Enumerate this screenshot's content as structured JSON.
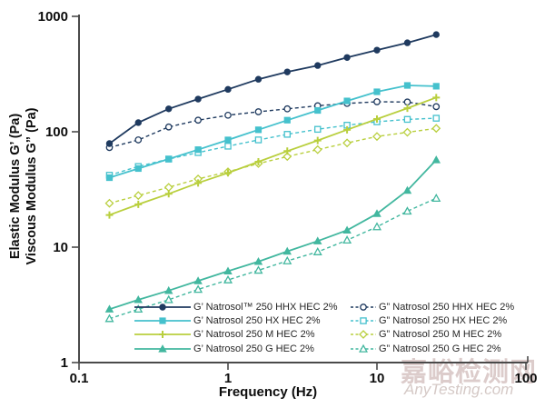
{
  "watermark": {
    "cjk": "嘉峪检测网",
    "latin": "AnyTesting.com"
  },
  "chart_data": {
    "type": "line",
    "scale": "log-log",
    "title": "",
    "xlabel": "Frequency (Hz)",
    "y_label_line1": "Elastic Modulus G’ (Pa)",
    "y_label_line2": "Viscous Modulus G” (Pa)",
    "xlim": [
      0.1,
      100
    ],
    "ylim": [
      1,
      1000
    ],
    "x_tick_values": [
      0.1,
      1,
      10,
      100
    ],
    "x_tick_labels": [
      "0.1",
      "1",
      "10",
      "100"
    ],
    "y_tick_values": [
      1,
      10,
      100,
      1000
    ],
    "y_tick_labels": [
      "1",
      "10",
      "100",
      "1000"
    ],
    "grid": "off",
    "legend_position": "bottom, two columns (G’ solid left, G” dashed right)",
    "x": [
      0.16,
      0.25,
      0.4,
      0.63,
      1,
      1.6,
      2.5,
      4,
      6.3,
      10,
      16,
      25
    ],
    "series": [
      {
        "id": "gp-hhx",
        "label": "G’ Natrosol™ 250 HHX HEC 2%",
        "color": "#1f3a5f",
        "dashed": false,
        "marker": "circle",
        "values": [
          79,
          120,
          158,
          192,
          233,
          285,
          330,
          375,
          440,
          510,
          590,
          695
        ]
      },
      {
        "id": "gp-hx",
        "label": "G’ Natrosol 250 HX HEC 2%",
        "color": "#45c1cd",
        "dashed": false,
        "marker": "square",
        "values": [
          40,
          48,
          58,
          70,
          85,
          104,
          126,
          153,
          185,
          222,
          252,
          248
        ]
      },
      {
        "id": "gp-m",
        "label": "G’ Natrosol 250 M HEC 2%",
        "color": "#b9cf3e",
        "dashed": false,
        "marker": "plus",
        "values": [
          19,
          23.5,
          29,
          36,
          44,
          55,
          68,
          84,
          104,
          129,
          160,
          198
        ]
      },
      {
        "id": "gp-g",
        "label": "G’ Natrosol 250 G HEC 2%",
        "color": "#42b79f",
        "dashed": false,
        "marker": "triangle",
        "values": [
          2.9,
          3.5,
          4.2,
          5.1,
          6.2,
          7.5,
          9.2,
          11.3,
          14,
          19.5,
          31,
          57
        ]
      },
      {
        "id": "gpp-hhx",
        "label": "G” Natrosol 250 HHX HEC 2%",
        "color": "#1f3a5f",
        "dashed": true,
        "marker": "circle",
        "values": [
          73,
          85,
          110,
          126,
          139,
          149,
          158,
          168,
          176,
          182,
          181,
          165
        ]
      },
      {
        "id": "gpp-hx",
        "label": "G” Natrosol 250 HX HEC 2%",
        "color": "#45c1cd",
        "dashed": true,
        "marker": "square",
        "values": [
          42,
          50,
          58,
          66,
          75,
          85,
          95,
          105,
          114,
          122,
          128,
          131
        ]
      },
      {
        "id": "gpp-m",
        "label": "G” Natrosol 250 M HEC 2%",
        "color": "#b9cf3e",
        "dashed": true,
        "marker": "diamond",
        "values": [
          24,
          28,
          33,
          39,
          45,
          53,
          61,
          70,
          80,
          91,
          99,
          107
        ]
      },
      {
        "id": "gpp-g",
        "label": "G” Natrosol 250 G HEC 2%",
        "color": "#42b79f",
        "dashed": true,
        "marker": "triangle",
        "values": [
          2.4,
          2.9,
          3.5,
          4.3,
          5.2,
          6.3,
          7.6,
          9.1,
          11.5,
          15,
          20.5,
          26.5
        ]
      }
    ],
    "axis_color": "#4a4a4a",
    "tick_label_color": "#0d0d0d"
  }
}
